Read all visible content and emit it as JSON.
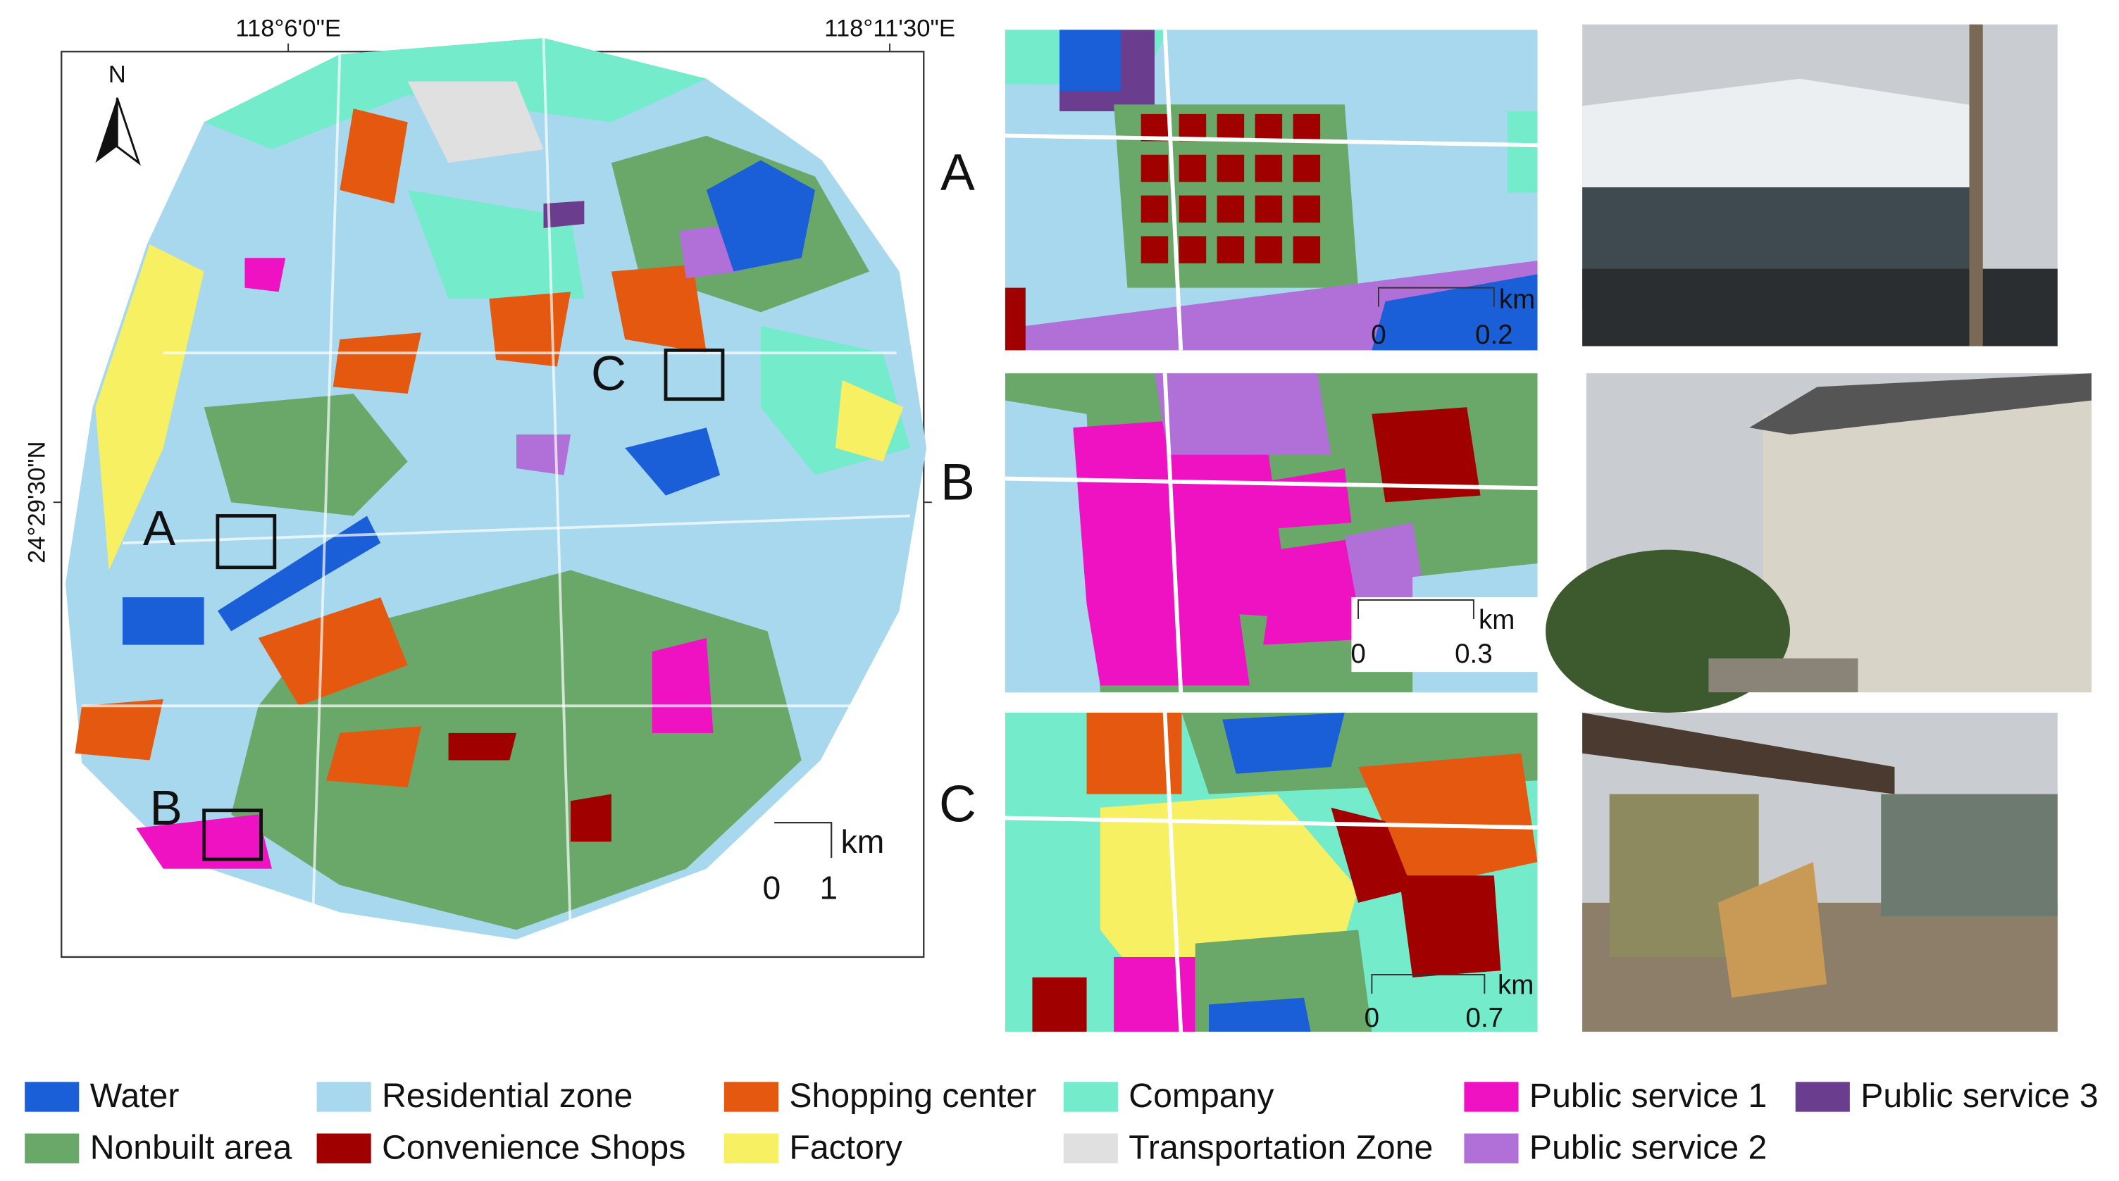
{
  "main_map": {
    "lon_labels": [
      "118°6'0\"E",
      "118°11'30\"E"
    ],
    "lat_label": "24°29'30\"N",
    "north": "N",
    "inset_labels": [
      "A",
      "B",
      "C"
    ],
    "scale_bar": {
      "unit": "km",
      "ticks": [
        0,
        1
      ]
    }
  },
  "panels": [
    {
      "label": "A",
      "scale_bar": {
        "unit": "km",
        "ticks": [
          0,
          0.2
        ]
      }
    },
    {
      "label": "B",
      "scale_bar": {
        "unit": "km",
        "ticks": [
          0,
          0.3
        ]
      }
    },
    {
      "label": "C",
      "scale_bar": {
        "unit": "km",
        "ticks": [
          0,
          0.7
        ]
      }
    }
  ],
  "legend": [
    {
      "label": "Water",
      "color": "#1a5fd8"
    },
    {
      "label": "Residential zone",
      "color": "#a8d8ee"
    },
    {
      "label": "Shopping center",
      "color": "#e5580f"
    },
    {
      "label": "Company",
      "color": "#74ebcb"
    },
    {
      "label": "Public service 1",
      "color": "#ee12c2"
    },
    {
      "label": "Public service 3",
      "color": "#6b3d8e"
    },
    {
      "label": "Nonbuilt area",
      "color": "#6aa86a"
    },
    {
      "label": "Convenience Shops",
      "color": "#a00000"
    },
    {
      "label": "Factory",
      "color": "#f7f062"
    },
    {
      "label": "Transportation Zone",
      "color": "#e0e0e0"
    },
    {
      "label": "Public service 2",
      "color": "#b070d8"
    }
  ]
}
